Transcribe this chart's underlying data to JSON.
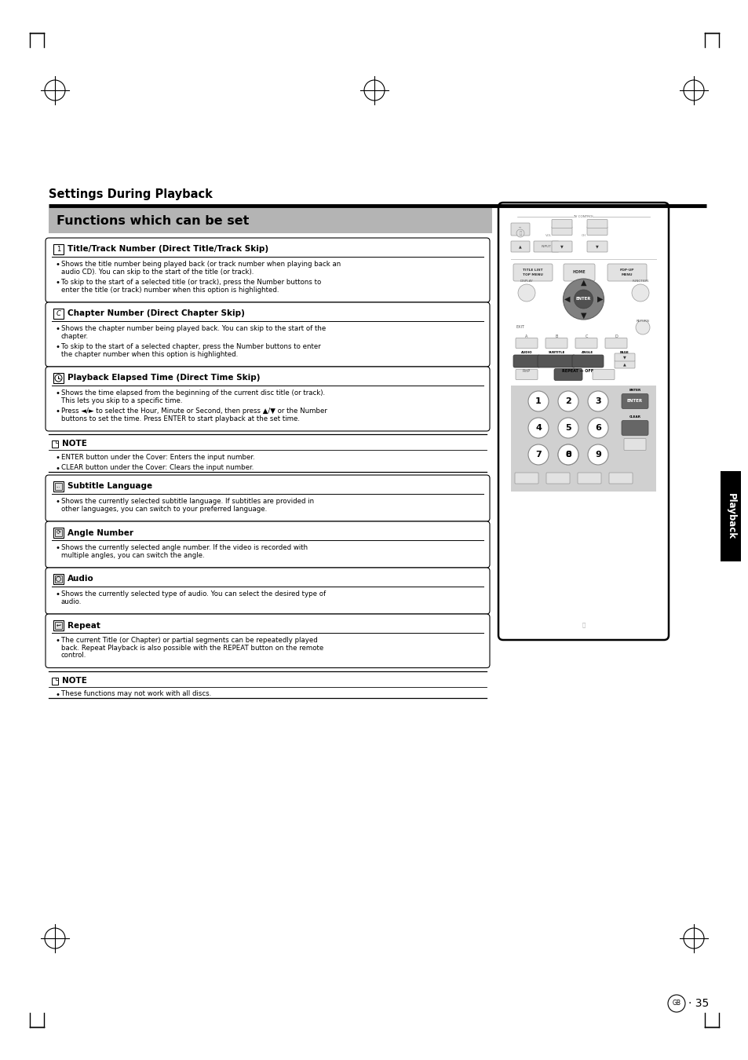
{
  "background_color": "#ffffff",
  "page_title": "Settings During Playback",
  "section_title": "Functions which can be set",
  "page_number": "35",
  "content_boxes": [
    {
      "icon_label": "1",
      "title": "Title/Track Number (Direct Title/Track Skip)",
      "bullets": [
        [
          [
            "Shows the title number being played back (or track number when playing back an audio CD). You can skip to the start of the title (or track).",
            false
          ]
        ],
        [
          [
            "To skip to the start of a selected title (or track), press the ",
            false
          ],
          [
            "Number",
            true
          ],
          [
            " buttons to enter the title (or track) number when this option is highlighted.",
            false
          ]
        ]
      ]
    },
    {
      "icon_label": "C",
      "title": "Chapter Number (Direct Chapter Skip)",
      "bullets": [
        [
          [
            "Shows the chapter number being played back. You can skip to the start of the chapter.",
            false
          ]
        ],
        [
          [
            "To skip to the start of a selected chapter, press the ",
            false
          ],
          [
            "Number",
            true
          ],
          [
            " buttons to enter the chapter number when this option is highlighted.",
            false
          ]
        ]
      ]
    },
    {
      "icon_label": "t",
      "title": "Playback Elapsed Time (Direct Time Skip)",
      "bullets": [
        [
          [
            "Shows the time elapsed from the beginning of the current disc title (or track). This lets you skip to a specific time.",
            false
          ]
        ],
        [
          [
            "Press ◄/► to select the Hour, Minute or Second, then press ▲/▼ or the ",
            false
          ],
          [
            "Number",
            true
          ],
          [
            " buttons to set the time. Press ",
            false
          ],
          [
            "ENTER",
            true
          ],
          [
            " to start playback at the set time.",
            false
          ]
        ]
      ]
    }
  ],
  "note1_bullets": [
    [
      [
        " ",
        false
      ],
      [
        "ENTER",
        true
      ],
      [
        " button under the Cover: Enters the input number.",
        false
      ]
    ],
    [
      [
        " ",
        false
      ],
      [
        "CLEAR",
        true
      ],
      [
        " button under the Cover: Clears the input number.",
        false
      ]
    ]
  ],
  "content_boxes2": [
    {
      "icon_label": "S",
      "title": "Subtitle Language",
      "bullets": [
        [
          [
            "Shows the currently selected subtitle language. If subtitles are provided in other languages, you can switch to your preferred language.",
            false
          ]
        ]
      ]
    },
    {
      "icon_label": "A",
      "title": "Angle Number",
      "bullets": [
        [
          [
            "Shows the currently selected angle number. If the video is recorded with multiple angles, you can switch the angle.",
            false
          ]
        ]
      ]
    },
    {
      "icon_label": "Au",
      "title": "Audio",
      "bullets": [
        [
          [
            "Shows the currently selected type of audio. You can select the desired type of audio.",
            false
          ]
        ]
      ]
    },
    {
      "icon_label": "R",
      "title": "Repeat",
      "bullets": [
        [
          [
            "The current Title (or Chapter) or partial segments can be repeatedly played back. Repeat Playback is also possible with the ",
            false
          ],
          [
            "REPEAT",
            true
          ],
          [
            " button on the remote control.",
            false
          ]
        ]
      ]
    }
  ],
  "note2_bullets": [
    [
      [
        "These functions may not work with all discs.",
        false
      ]
    ]
  ]
}
